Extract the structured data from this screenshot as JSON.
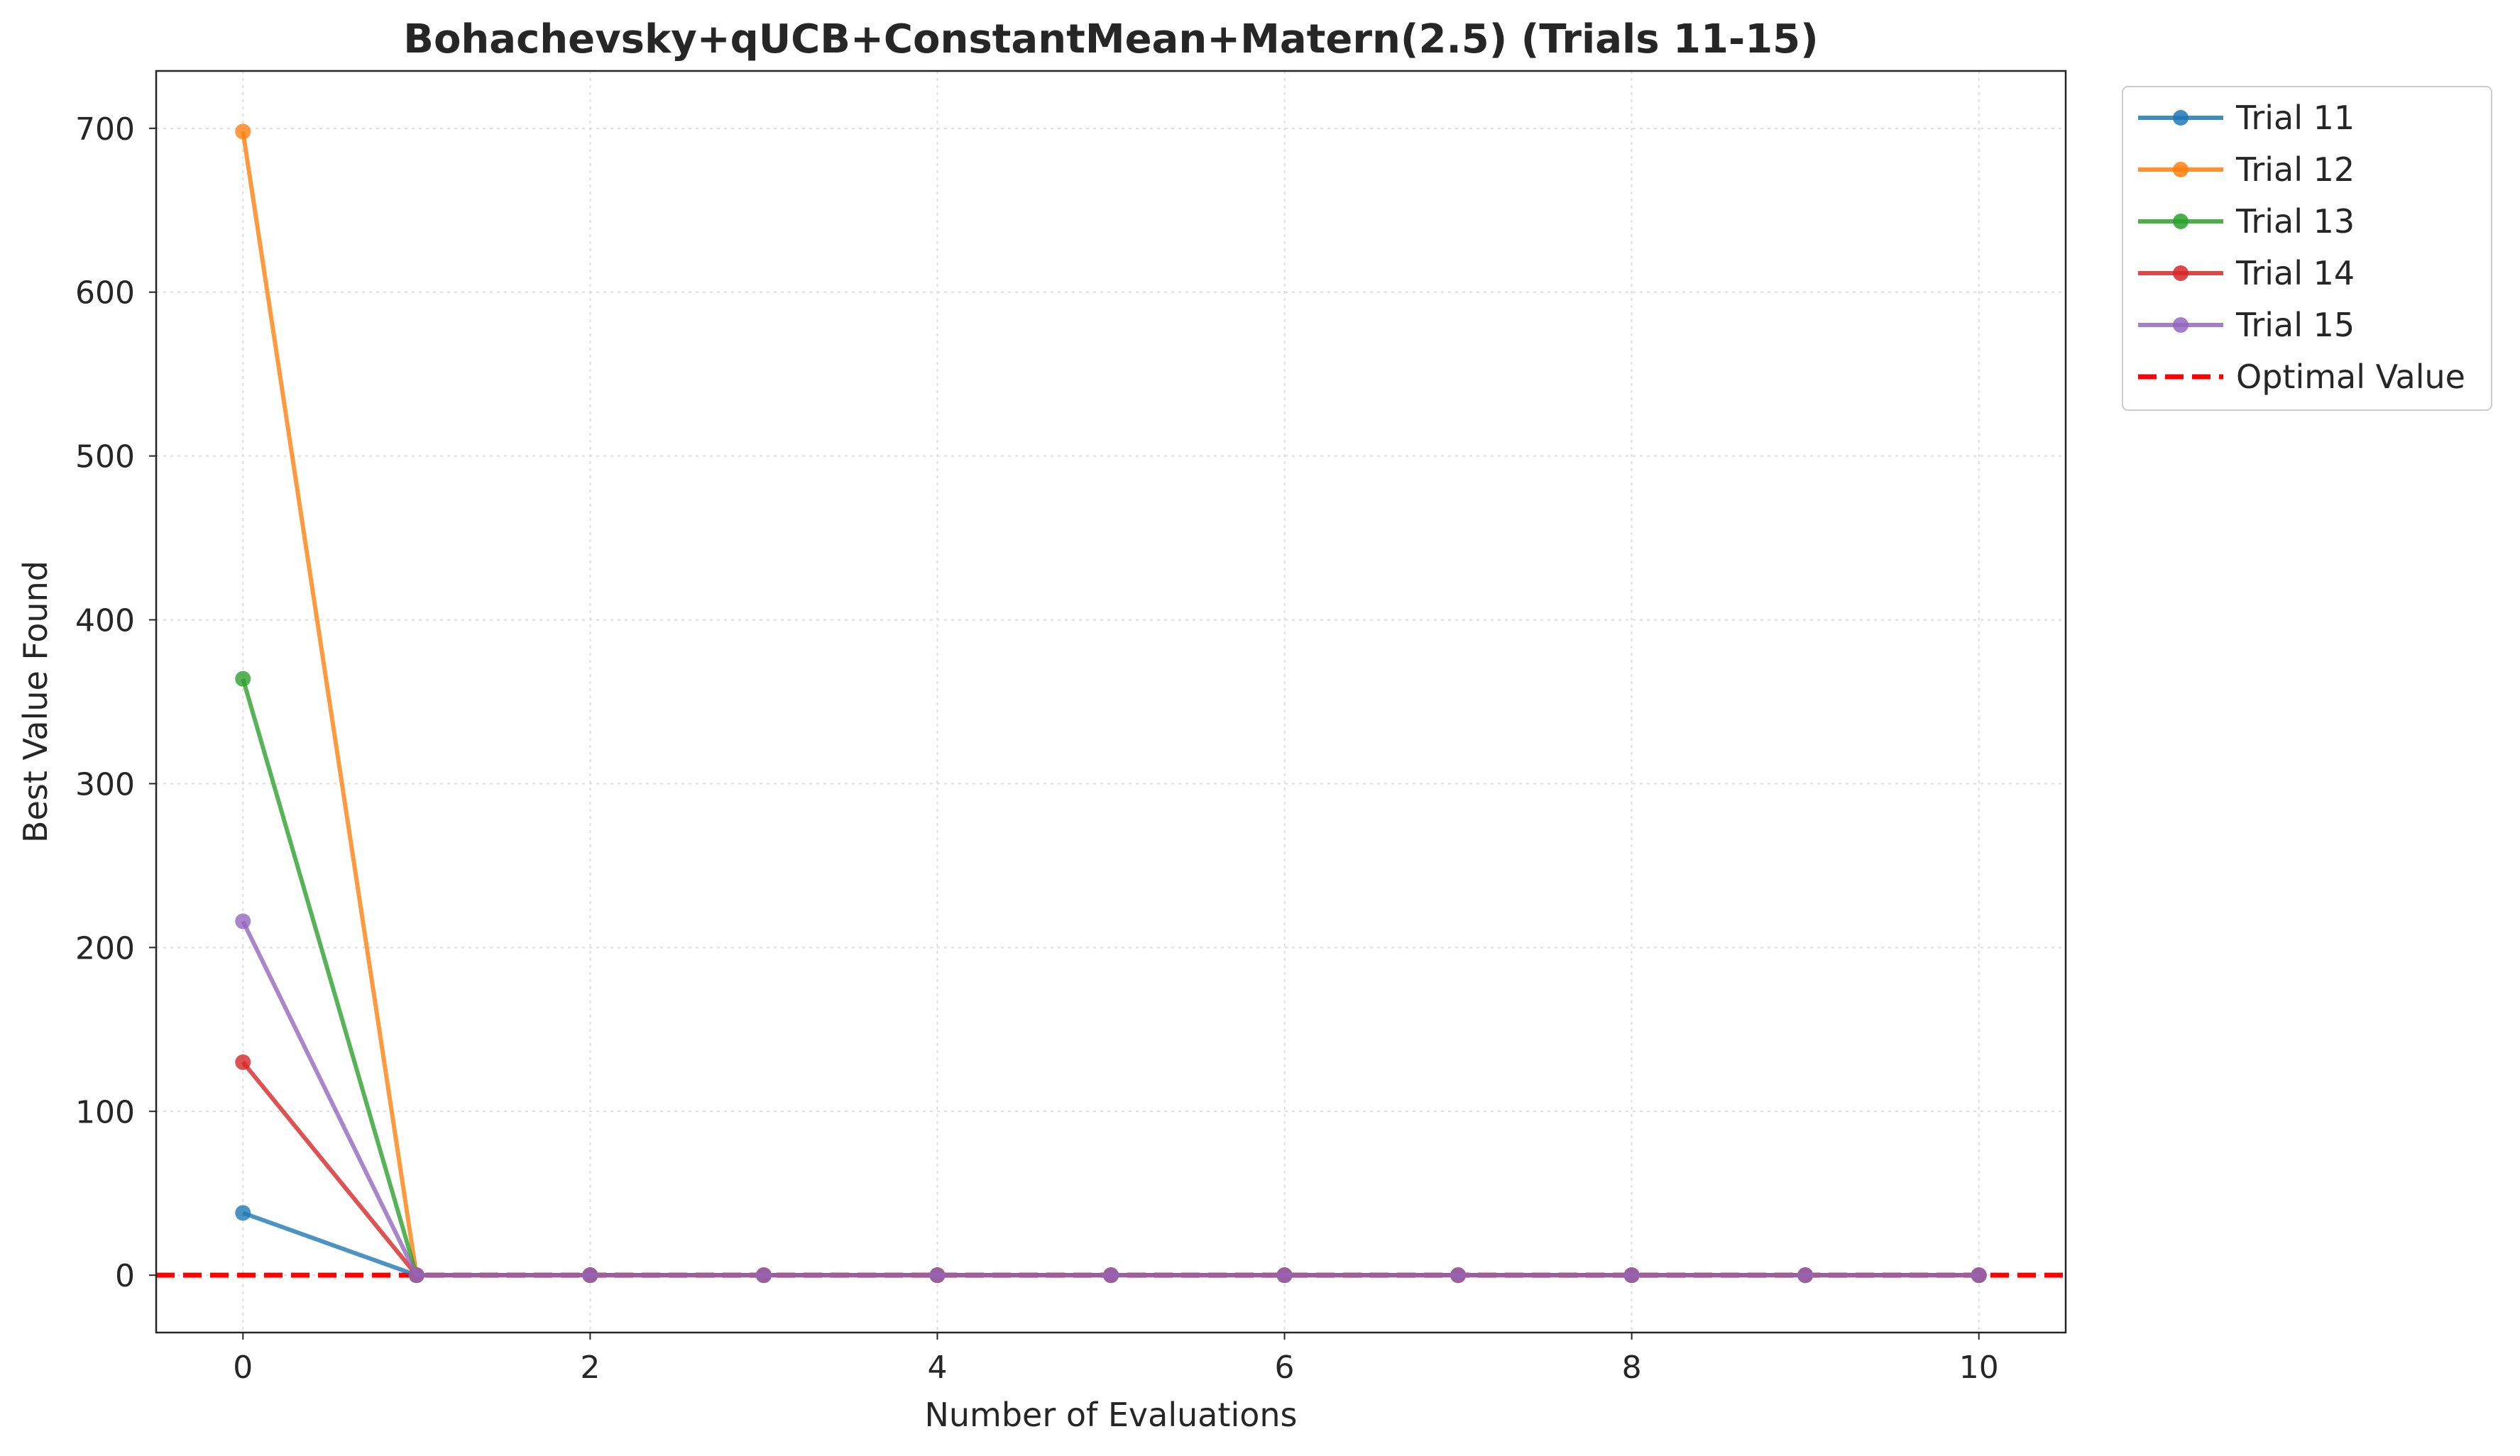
{
  "chart_data": {
    "type": "line",
    "title": "Bohachevsky+qUCB+ConstantMean+Matern(2.5) (Trials 11-15)",
    "xlabel": "Number of Evaluations",
    "ylabel": "Best Value Found",
    "xlim": [
      -0.5,
      10.5
    ],
    "ylim": [
      -35,
      735
    ],
    "xticks": [
      0,
      2,
      4,
      6,
      8,
      10
    ],
    "yticks": [
      0,
      100,
      200,
      300,
      400,
      500,
      600,
      700
    ],
    "grid": true,
    "legend_position": "outside-upper-right",
    "x": [
      0,
      1,
      2,
      3,
      4,
      5,
      6,
      7,
      8,
      9,
      10
    ],
    "series": [
      {
        "name": "Trial 11",
        "color": "#1f77b4",
        "values": [
          38,
          0,
          0,
          0,
          0,
          0,
          0,
          0,
          0,
          0,
          0
        ]
      },
      {
        "name": "Trial 12",
        "color": "#ff7f0e",
        "values": [
          698,
          0,
          0,
          0,
          0,
          0,
          0,
          0,
          0,
          0,
          0
        ]
      },
      {
        "name": "Trial 13",
        "color": "#2ca02c",
        "values": [
          364,
          0,
          0,
          0,
          0,
          0,
          0,
          0,
          0,
          0,
          0
        ]
      },
      {
        "name": "Trial 14",
        "color": "#d62728",
        "values": [
          130,
          0,
          0,
          0,
          0,
          0,
          0,
          0,
          0,
          0,
          0
        ]
      },
      {
        "name": "Trial 15",
        "color": "#9467bd",
        "values": [
          216,
          0,
          0,
          0,
          0,
          0,
          0,
          0,
          0,
          0,
          0
        ]
      }
    ],
    "reference_line": {
      "name": "Optimal Value",
      "value": 0,
      "color": "#ff0000",
      "style": "dashed"
    }
  }
}
